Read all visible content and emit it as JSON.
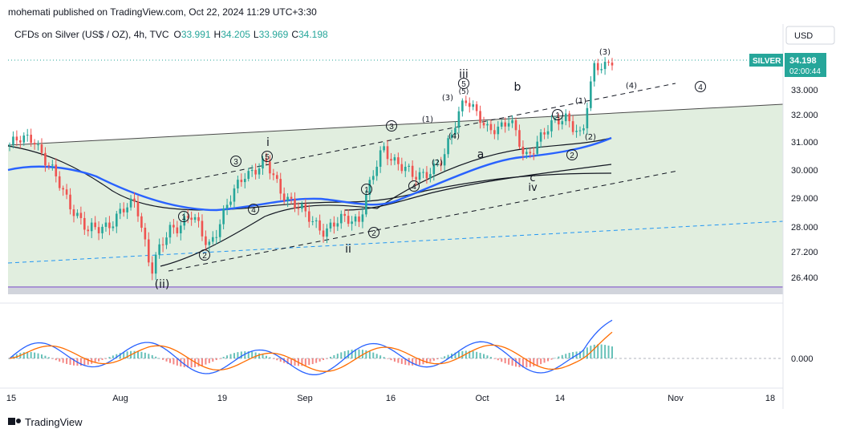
{
  "header": {
    "published": "mohemati published on TradingView.com, Oct 22, 2024 11:29 UTC+3:30",
    "symbol": "CFDs on Silver (US$ / OZ), 4h, TVC",
    "open_label": "O",
    "open": "33.991",
    "high_label": "H",
    "high": "34.205",
    "low_label": "L",
    "low": "33.969",
    "close_label": "C",
    "close": "34.198"
  },
  "currency": "USD",
  "price_tag": {
    "symbol": "SILVER",
    "price": "34.198",
    "countdown": "02:00:44"
  },
  "footer": {
    "brand": "TradingView"
  },
  "colors": {
    "up": "#26a69a",
    "down": "#ef5350",
    "ma_blue": "#2962ff",
    "band_fill": "#dcebd9",
    "macd": "#2962ff",
    "signal": "#ff6d00",
    "support": "#2196f3",
    "purple": "#7e57c2"
  },
  "chart_data": {
    "type": "candlestick",
    "symbol": "CFDs on Silver (US$ / OZ)",
    "timeframe": "4h",
    "x_ticks": [
      "15",
      "Aug",
      "19",
      "Sep",
      "16",
      "Oct",
      "14",
      "Nov",
      "18"
    ],
    "y_ticks": [
      "33.000",
      "32.000",
      "31.000",
      "30.000",
      "29.000",
      "28.000",
      "27.200",
      "26.400"
    ],
    "ylim": [
      25.9,
      34.9
    ],
    "last_price": 34.198,
    "keypoints": [
      {
        "t": 0.0,
        "p": 30.9
      },
      {
        "t": 0.04,
        "p": 31.2
      },
      {
        "t": 0.06,
        "p": 30.3
      },
      {
        "t": 0.09,
        "p": 29.2
      },
      {
        "t": 0.13,
        "p": 27.8
      },
      {
        "t": 0.17,
        "p": 28.2
      },
      {
        "t": 0.21,
        "p": 28.9
      },
      {
        "t": 0.235,
        "p": 26.6
      },
      {
        "t": 0.265,
        "p": 27.9
      },
      {
        "t": 0.3,
        "p": 28.4
      },
      {
        "t": 0.33,
        "p": 27.4
      },
      {
        "t": 0.39,
        "p": 29.9
      },
      {
        "t": 0.425,
        "p": 30.2
      },
      {
        "t": 0.45,
        "p": 29.3
      },
      {
        "t": 0.49,
        "p": 28.4
      },
      {
        "t": 0.525,
        "p": 27.9
      },
      {
        "t": 0.56,
        "p": 28.3
      },
      {
        "t": 0.58,
        "p": 28.3
      },
      {
        "t": 0.62,
        "p": 30.8
      },
      {
        "t": 0.67,
        "p": 29.7
      },
      {
        "t": 0.72,
        "p": 30.3
      },
      {
        "t": 0.755,
        "p": 32.8
      },
      {
        "t": 0.79,
        "p": 31.4
      },
      {
        "t": 0.83,
        "p": 31.8
      },
      {
        "t": 0.855,
        "p": 30.4
      },
      {
        "t": 0.88,
        "p": 31.2
      },
      {
        "t": 0.925,
        "p": 32.0
      },
      {
        "t": 0.95,
        "p": 31.1
      },
      {
        "t": 0.97,
        "p": 33.9
      },
      {
        "t": 1.0,
        "p": 34.2
      }
    ],
    "annotations": [
      "(ii)",
      "i",
      "ii",
      "iii",
      "iv",
      "a",
      "b",
      "c",
      "(3)",
      "(4)",
      "(1)",
      "(2)",
      "①",
      "②",
      "③",
      "④",
      "⑤"
    ],
    "oscillator": {
      "type": "macd",
      "zero_label": "0.000"
    }
  }
}
